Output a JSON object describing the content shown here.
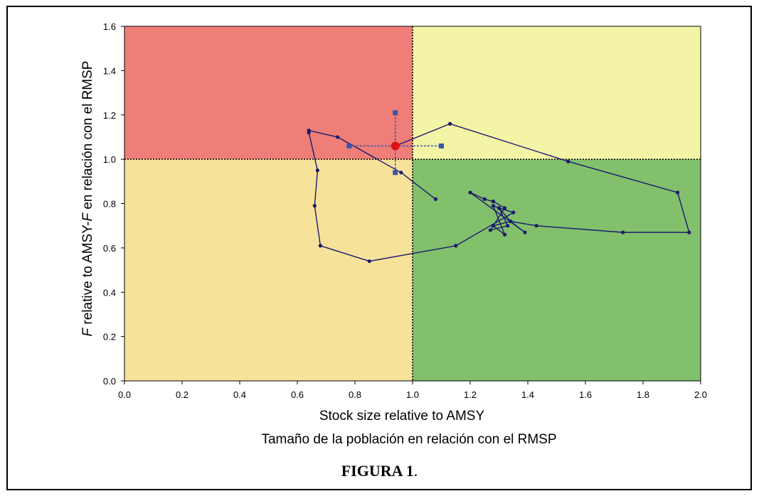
{
  "figure": {
    "caption": "FIGURA 1",
    "caption_suffix": "."
  },
  "colors": {
    "red_zone": "#ee7e77",
    "yellow_zone": "#f4f4a6",
    "orange_zone": "#f7e29a",
    "green_zone": "#82c06c",
    "trajectory": "#1a1a6e",
    "current_point": "#dd1111",
    "ci_marker": "#3b55a8"
  },
  "chart_data": {
    "type": "scatter",
    "xlabel": "Stock size relative to AMSY",
    "xlabel_es": "Tamaño de la población en relación con el RMSP",
    "ylabel_prefix": "F",
    "ylabel_rest": " relative to AMSY-",
    "ylabel_f2": "F",
    "ylabel_end": " en relación con el RMSP",
    "xlim": [
      0.0,
      2.0
    ],
    "ylim": [
      0.0,
      1.6
    ],
    "xticks": [
      "0.0",
      "0.2",
      "0.4",
      "0.6",
      "0.8",
      "1.0",
      "1.2",
      "1.4",
      "1.6",
      "1.8",
      "2.0"
    ],
    "yticks": [
      "0.0",
      "0.2",
      "0.4",
      "0.6",
      "0.8",
      "1.0",
      "1.2",
      "1.4",
      "1.6"
    ],
    "reference_lines": {
      "x": 1.0,
      "y": 1.0
    },
    "trajectory": [
      {
        "x": 1.08,
        "y": 0.82
      },
      {
        "x": 0.96,
        "y": 0.94
      },
      {
        "x": 0.74,
        "y": 1.1
      },
      {
        "x": 0.64,
        "y": 1.13
      },
      {
        "x": 0.64,
        "y": 1.12
      },
      {
        "x": 0.67,
        "y": 0.95
      },
      {
        "x": 0.66,
        "y": 0.79
      },
      {
        "x": 0.68,
        "y": 0.61
      },
      {
        "x": 0.85,
        "y": 0.54
      },
      {
        "x": 1.15,
        "y": 0.61
      },
      {
        "x": 1.35,
        "y": 0.76
      },
      {
        "x": 1.3,
        "y": 0.78
      },
      {
        "x": 1.33,
        "y": 0.7
      },
      {
        "x": 1.27,
        "y": 0.68
      },
      {
        "x": 1.32,
        "y": 0.78
      },
      {
        "x": 1.28,
        "y": 0.81
      },
      {
        "x": 1.25,
        "y": 0.82
      },
      {
        "x": 1.2,
        "y": 0.85
      },
      {
        "x": 1.39,
        "y": 0.67
      },
      {
        "x": 1.34,
        "y": 0.72
      },
      {
        "x": 1.3,
        "y": 0.78
      },
      {
        "x": 1.28,
        "y": 0.79
      },
      {
        "x": 1.32,
        "y": 0.66
      },
      {
        "x": 1.28,
        "y": 0.7
      },
      {
        "x": 1.34,
        "y": 0.72
      },
      {
        "x": 1.43,
        "y": 0.7
      },
      {
        "x": 1.73,
        "y": 0.67
      },
      {
        "x": 1.96,
        "y": 0.67
      },
      {
        "x": 1.92,
        "y": 0.85
      },
      {
        "x": 1.54,
        "y": 0.99
      },
      {
        "x": 1.13,
        "y": 1.16
      },
      {
        "x": 0.94,
        "y": 1.06
      }
    ],
    "current": {
      "x": 0.94,
      "y": 1.06
    },
    "ci": {
      "x_low": 0.78,
      "x_high": 1.1,
      "y_low": 0.94,
      "y_high": 1.21
    }
  }
}
